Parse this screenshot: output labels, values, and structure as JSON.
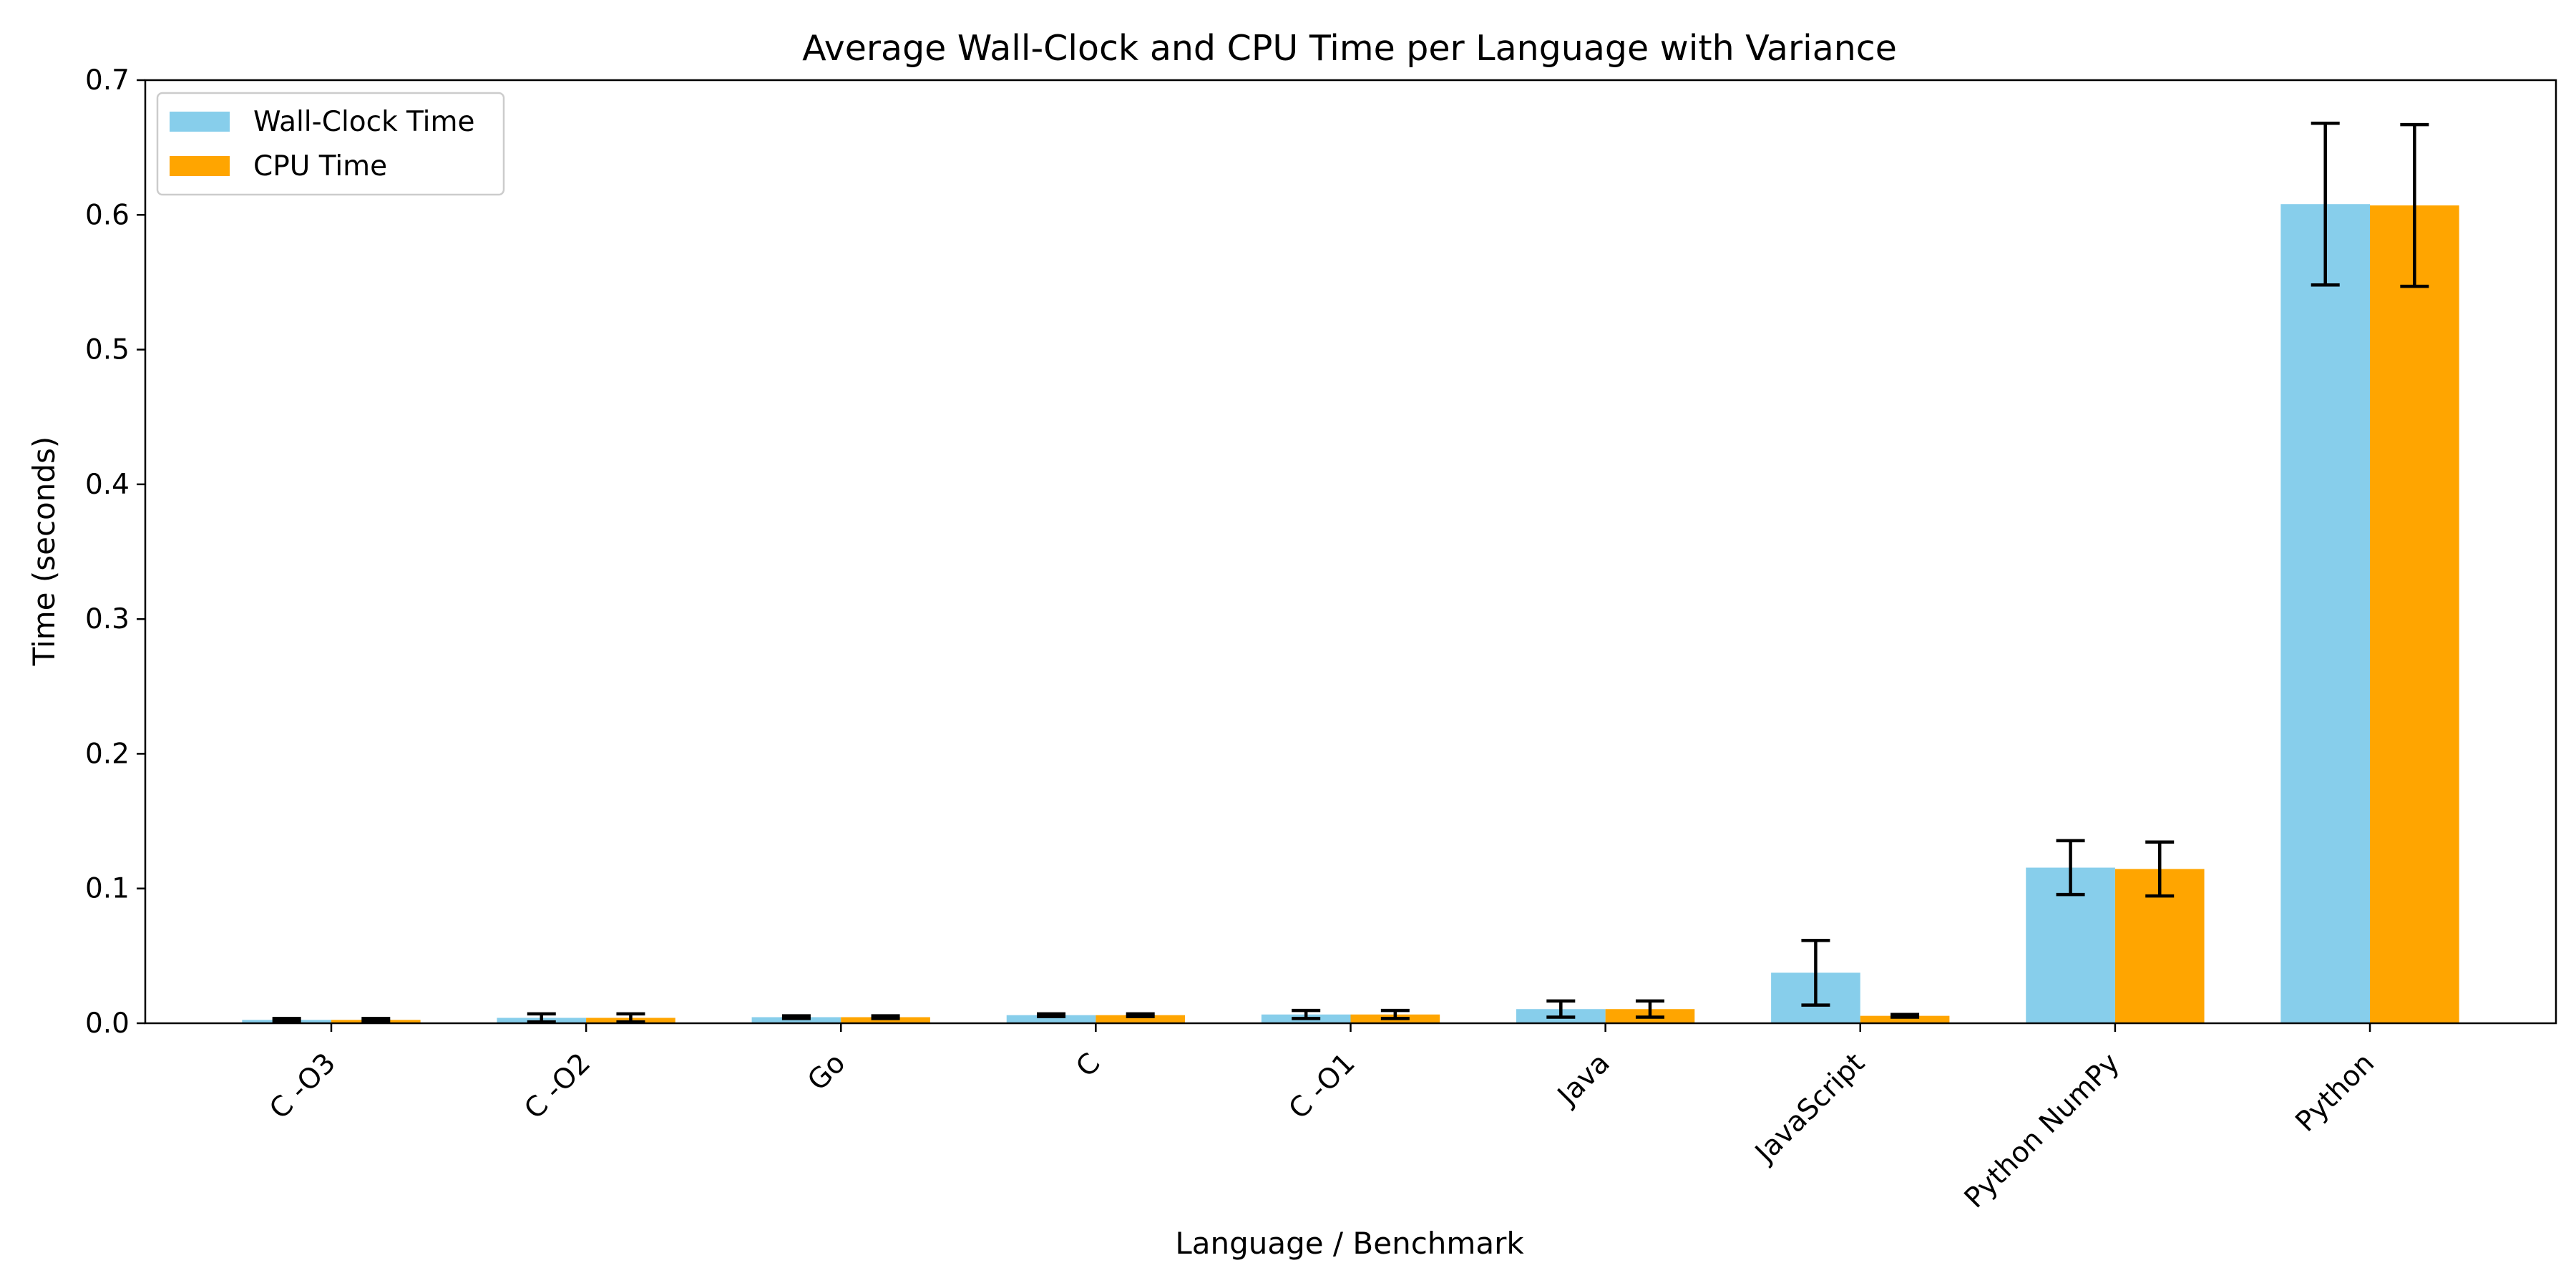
{
  "chart_data": {
    "type": "bar",
    "title": "Average Wall-Clock and CPU Time per Language with Variance",
    "xlabel": "Language / Benchmark",
    "ylabel": "Time (seconds)",
    "ylim": [
      0,
      0.7
    ],
    "yticks": [
      0.0,
      0.1,
      0.2,
      0.3,
      0.4,
      0.5,
      0.6,
      0.7
    ],
    "ytick_labels": [
      "0.0",
      "0.1",
      "0.2",
      "0.3",
      "0.4",
      "0.5",
      "0.6",
      "0.7"
    ],
    "categories": [
      "C -O3",
      "C -O2",
      "Go",
      "C",
      "C -O1",
      "Java",
      "JavaScript",
      "Python NumPy",
      "Python"
    ],
    "series": [
      {
        "name": "Wall-Clock Time",
        "color": "#87ceeb",
        "values": [
          0.0025,
          0.004,
          0.0045,
          0.006,
          0.0065,
          0.0105,
          0.0375,
          0.1155,
          0.608
        ],
        "errors": [
          0.001,
          0.003,
          0.001,
          0.001,
          0.003,
          0.006,
          0.024,
          0.02,
          0.06
        ]
      },
      {
        "name": "CPU Time",
        "color": "#ffa500",
        "values": [
          0.0025,
          0.004,
          0.0045,
          0.006,
          0.0065,
          0.0105,
          0.0055,
          0.1145,
          0.607
        ],
        "errors": [
          0.001,
          0.003,
          0.001,
          0.001,
          0.003,
          0.006,
          0.001,
          0.02,
          0.06
        ]
      }
    ],
    "error_bar_color": "#000000",
    "legend_position": "top-left",
    "grid": false
  }
}
